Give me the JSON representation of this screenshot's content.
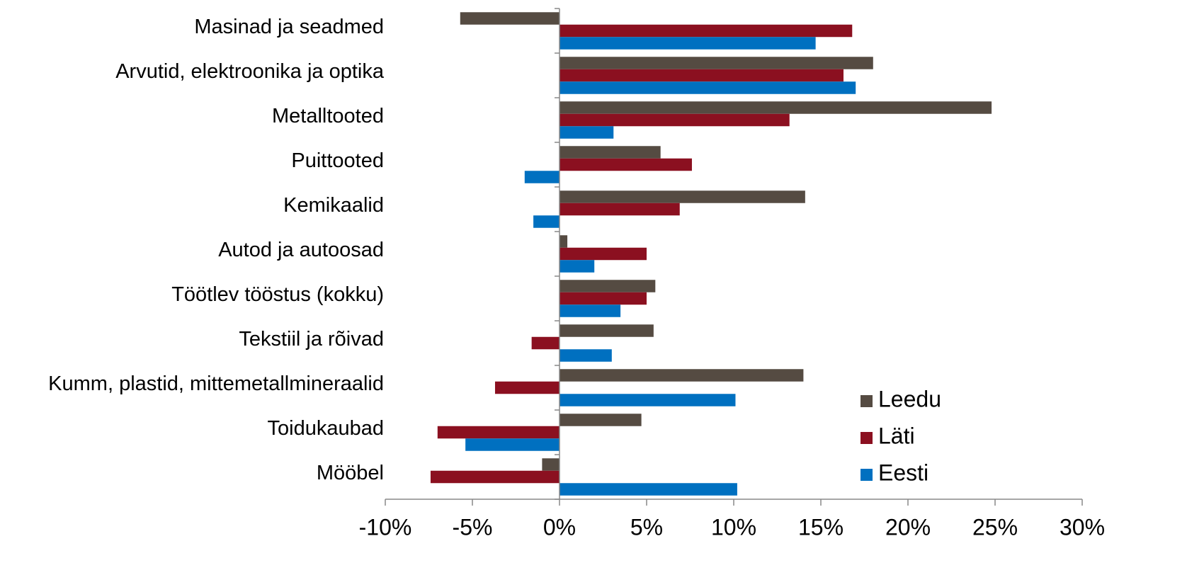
{
  "chart_data": {
    "type": "barh",
    "categories": [
      "Masinad ja seadmed",
      "Arvutid, elektroonika ja optika",
      "Metalltooted",
      "Puittooted",
      "Kemikaalid",
      "Autod ja autoosad",
      "Töötlev tööstus (kokku)",
      "Tekstiil ja rõivad",
      "Kumm, plastid, mittemetallmineraalid",
      "Toidukaubad",
      "Mööbel"
    ],
    "series": [
      {
        "name": "Leedu",
        "color": "#554b42",
        "values": [
          -5.7,
          18.0,
          24.8,
          5.8,
          14.1,
          0.45,
          5.5,
          5.4,
          14.0,
          4.7,
          -1.0
        ]
      },
      {
        "name": "Läti",
        "color": "#8b1020",
        "values": [
          16.8,
          16.3,
          13.2,
          7.6,
          6.9,
          5.0,
          5.0,
          -1.6,
          -3.7,
          -7.0,
          -7.4
        ]
      },
      {
        "name": "Eesti",
        "color": "#0070c0",
        "values": [
          14.7,
          17.0,
          3.1,
          -2.0,
          -1.5,
          2.0,
          3.5,
          3.0,
          10.1,
          -5.4,
          10.2
        ]
      }
    ],
    "xlim": [
      -10,
      30
    ],
    "xticks": [
      {
        "value": -10,
        "label": "-10%"
      },
      {
        "value": -5,
        "label": "-5%"
      },
      {
        "value": 0,
        "label": "0%"
      },
      {
        "value": 5,
        "label": "5%"
      },
      {
        "value": 10,
        "label": "10%"
      },
      {
        "value": 15,
        "label": "15%"
      },
      {
        "value": 20,
        "label": "20%"
      },
      {
        "value": 25,
        "label": "25%"
      },
      {
        "value": 30,
        "label": "30%"
      }
    ],
    "legend_position": "lower right",
    "grid": false
  }
}
